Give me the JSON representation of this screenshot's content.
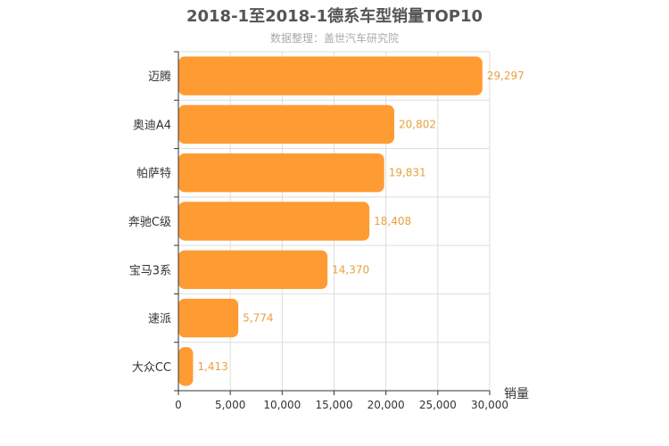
{
  "chart_data": {
    "type": "bar",
    "orientation": "horizontal",
    "title": "2018-1至2018-1德系车型销量TOP10",
    "subtitle": "数据整理：盖世汽车研究院",
    "xlabel": "销量",
    "ylabel": "",
    "xlim": [
      0,
      30000
    ],
    "x_ticks": [
      "0",
      "5,000",
      "10,000",
      "15,000",
      "20,000",
      "25,000",
      "30,000"
    ],
    "categories": [
      "迈腾",
      "奥迪A4",
      "帕萨特",
      "奔驰C级",
      "宝马3系",
      "速派",
      "大众CC"
    ],
    "values": [
      29297,
      20802,
      19831,
      18408,
      14370,
      5774,
      1413
    ],
    "value_labels": [
      "29,297",
      "20,802",
      "19,831",
      "18,408",
      "14,370",
      "5,774",
      "1,413"
    ],
    "grid": true,
    "colors": {
      "bar": "#ff9b33",
      "value_label": "#e8a040",
      "title": "#555555",
      "subtitle": "#aaaaaa"
    }
  }
}
